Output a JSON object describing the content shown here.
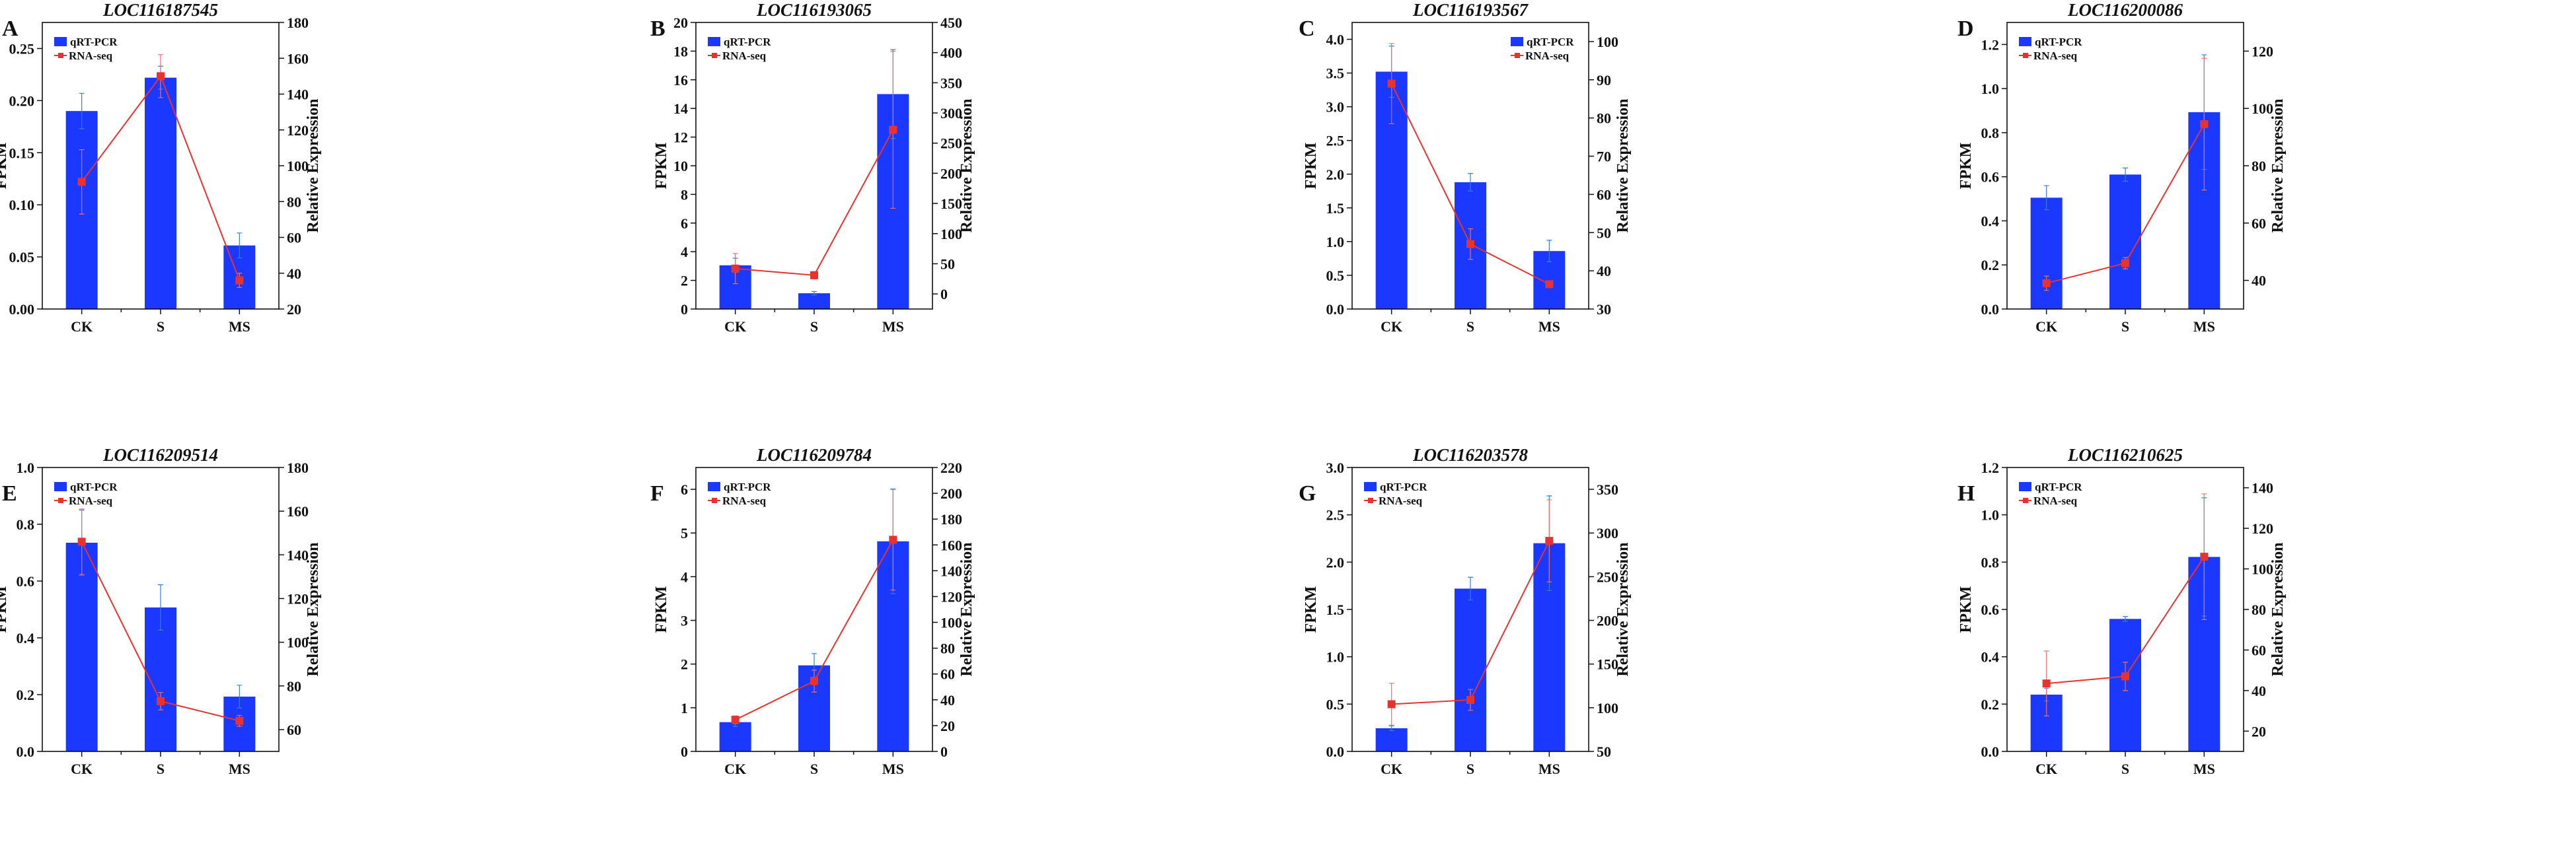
{
  "colors": {
    "bar": "#1a38ff",
    "bar_error": "#3a7bd5",
    "line": "#e8322f",
    "line_error": "#e87070",
    "axis": "#111111"
  },
  "chart_data": [
    {
      "panel": "A",
      "title": "LOC116187545",
      "type": "bar+line",
      "categories": [
        "CK",
        "S",
        "MS"
      ],
      "ylabel": "FPKM",
      "y2label": "Relative Expression",
      "ylim": [
        0,
        0.275
      ],
      "y2lim": [
        20,
        180
      ],
      "yticks": [
        "0.00",
        "0.05",
        "0.10",
        "0.15",
        "0.20",
        "0.25"
      ],
      "y2ticks": [
        "20",
        "40",
        "60",
        "80",
        "100",
        "120",
        "140",
        "160",
        "180"
      ],
      "legend": "top-left",
      "series": [
        {
          "name": "qRT-PCR",
          "type": "bar",
          "axis": "left",
          "values": [
            0.19,
            0.222,
            0.061
          ],
          "errors": [
            0.017,
            0.011,
            0.012
          ]
        },
        {
          "name": "RNA-seq",
          "type": "line",
          "axis": "right",
          "values": [
            91,
            150,
            36
          ],
          "errors": [
            18,
            12,
            4
          ]
        }
      ]
    },
    {
      "panel": "B",
      "title": "LOC116193065",
      "type": "bar+line",
      "categories": [
        "CK",
        "S",
        "MS"
      ],
      "ylabel": "FPKM",
      "y2label": "Relative Expression",
      "ylim": [
        0,
        20
      ],
      "y2lim": [
        -25,
        450
      ],
      "yticks": [
        "0",
        "2",
        "4",
        "6",
        "8",
        "10",
        "12",
        "14",
        "16",
        "18",
        "20"
      ],
      "y2ticks": [
        "0",
        "50",
        "100",
        "150",
        "200",
        "250",
        "300",
        "350",
        "400",
        "450"
      ],
      "legend": "top-left",
      "series": [
        {
          "name": "qRT-PCR",
          "type": "bar",
          "axis": "left",
          "values": [
            3.05,
            1.1,
            15.0
          ],
          "errors": [
            0.5,
            0.12,
            3.1
          ]
        },
        {
          "name": "RNA-seq",
          "type": "line",
          "axis": "right",
          "values": [
            42,
            31,
            272
          ],
          "errors": [
            25,
            6,
            130
          ]
        }
      ]
    },
    {
      "panel": "C",
      "title": "LOC116193567",
      "type": "bar+line",
      "categories": [
        "CK",
        "S",
        "MS"
      ],
      "ylabel": "FPKM",
      "y2label": "Relative Expression",
      "ylim": [
        0,
        4.25
      ],
      "y2lim": [
        30,
        105
      ],
      "yticks": [
        "0.0",
        "0.5",
        "1.0",
        "1.5",
        "2.0",
        "2.5",
        "3.0",
        "3.5",
        "4.0"
      ],
      "y2ticks": [
        "30",
        "40",
        "50",
        "60",
        "70",
        "80",
        "90",
        "100"
      ],
      "legend": "top-right",
      "series": [
        {
          "name": "qRT-PCR",
          "type": "bar",
          "axis": "left",
          "values": [
            3.52,
            1.88,
            0.86
          ],
          "errors": [
            0.38,
            0.13,
            0.16
          ]
        },
        {
          "name": "RNA-seq",
          "type": "line",
          "axis": "right",
          "values": [
            89,
            47,
            36.5
          ],
          "errors": [
            10.5,
            4,
            0.5
          ]
        }
      ]
    },
    {
      "panel": "D",
      "title": "LOC116200086",
      "type": "bar+line",
      "categories": [
        "CK",
        "S",
        "MS"
      ],
      "ylabel": "FPKM",
      "y2label": "Relative Expression",
      "ylim": [
        0,
        1.3
      ],
      "y2lim": [
        30,
        130
      ],
      "yticks": [
        "0.0",
        "0.2",
        "0.4",
        "0.6",
        "0.8",
        "1.0",
        "1.2"
      ],
      "y2ticks": [
        "40",
        "60",
        "80",
        "100",
        "120"
      ],
      "legend": "top-left",
      "series": [
        {
          "name": "qRT-PCR",
          "type": "bar",
          "axis": "left",
          "values": [
            0.505,
            0.61,
            0.893
          ],
          "errors": [
            0.055,
            0.03,
            0.26
          ]
        },
        {
          "name": "RNA-seq",
          "type": "line",
          "axis": "right",
          "values": [
            39,
            46,
            94.5
          ],
          "errors": [
            2.5,
            2,
            23
          ]
        }
      ]
    },
    {
      "panel": "E",
      "title": "LOC116209514",
      "type": "bar+line",
      "categories": [
        "CK",
        "S",
        "MS"
      ],
      "ylabel": "FPKM",
      "y2label": "Relative Expression",
      "ylim": [
        0,
        1.0
      ],
      "y2lim": [
        50,
        180
      ],
      "yticks": [
        "0.0",
        "0.2",
        "0.4",
        "0.6",
        "0.8",
        "1.0"
      ],
      "y2ticks": [
        "60",
        "80",
        "100",
        "120",
        "140",
        "160",
        "180"
      ],
      "legend": "top-left",
      "series": [
        {
          "name": "qRT-PCR",
          "type": "bar",
          "axis": "left",
          "values": [
            0.735,
            0.507,
            0.193
          ],
          "errors": [
            0.115,
            0.08,
            0.04
          ]
        },
        {
          "name": "RNA-seq",
          "type": "line",
          "axis": "right",
          "values": [
            146,
            73,
            64
          ],
          "errors": [
            15,
            4,
            2.5
          ]
        }
      ]
    },
    {
      "panel": "F",
      "title": "LOC116209784",
      "type": "bar+line",
      "categories": [
        "CK",
        "S",
        "MS"
      ],
      "ylabel": "FPKM",
      "y2label": "Relative Expression",
      "ylim": [
        0,
        6.5
      ],
      "y2lim": [
        0,
        220
      ],
      "yticks": [
        "0",
        "1",
        "2",
        "3",
        "4",
        "5",
        "6"
      ],
      "y2ticks": [
        "0",
        "20",
        "40",
        "60",
        "80",
        "100",
        "120",
        "140",
        "160",
        "180",
        "200",
        "220"
      ],
      "legend": "top-left",
      "series": [
        {
          "name": "qRT-PCR",
          "type": "bar",
          "axis": "left",
          "values": [
            0.67,
            1.97,
            4.81
          ],
          "errors": [
            0.1,
            0.27,
            1.2
          ]
        },
        {
          "name": "RNA-seq",
          "type": "line",
          "axis": "right",
          "values": [
            24.5,
            54.5,
            164
          ],
          "errors": [
            3,
            8.5,
            39
          ]
        }
      ]
    },
    {
      "panel": "G",
      "title": "LOC116203578",
      "type": "bar+line",
      "categories": [
        "CK",
        "S",
        "MS"
      ],
      "ylabel": "FPKM",
      "y2label": "Relative Expression",
      "ylim": [
        0,
        3.0
      ],
      "y2lim": [
        50,
        375
      ],
      "yticks": [
        "0.0",
        "0.5",
        "1.0",
        "1.5",
        "2.0",
        "2.5",
        "3.0"
      ],
      "y2ticks": [
        "50",
        "100",
        "150",
        "200",
        "250",
        "300",
        "350"
      ],
      "legend": "top-left",
      "series": [
        {
          "name": "qRT-PCR",
          "type": "bar",
          "axis": "left",
          "values": [
            0.245,
            1.72,
            2.2
          ],
          "errors": [
            0.025,
            0.12,
            0.5
          ]
        },
        {
          "name": "RNA-seq",
          "type": "line",
          "axis": "right",
          "values": [
            104,
            109,
            291
          ],
          "errors": [
            24,
            12,
            47
          ]
        }
      ]
    },
    {
      "panel": "H",
      "title": "LOC116210625",
      "type": "bar+line",
      "categories": [
        "CK",
        "S",
        "MS"
      ],
      "ylabel": "FPKM",
      "y2label": "Relative Expression",
      "ylim": [
        0,
        1.2
      ],
      "y2lim": [
        10,
        150
      ],
      "yticks": [
        "0.0",
        "0.2",
        "0.4",
        "0.6",
        "0.8",
        "1.0",
        "1.2"
      ],
      "y2ticks": [
        "20",
        "40",
        "60",
        "80",
        "100",
        "120",
        "140"
      ],
      "legend": "top-left",
      "series": [
        {
          "name": "qRT-PCR",
          "type": "bar",
          "axis": "left",
          "values": [
            0.24,
            0.56,
            0.822
          ],
          "errors": [
            0.027,
            0.01,
            0.25
          ]
        },
        {
          "name": "RNA-seq",
          "type": "line",
          "axis": "right",
          "values": [
            43.5,
            47,
            106
          ],
          "errors": [
            16,
            7,
            31
          ]
        }
      ]
    }
  ]
}
